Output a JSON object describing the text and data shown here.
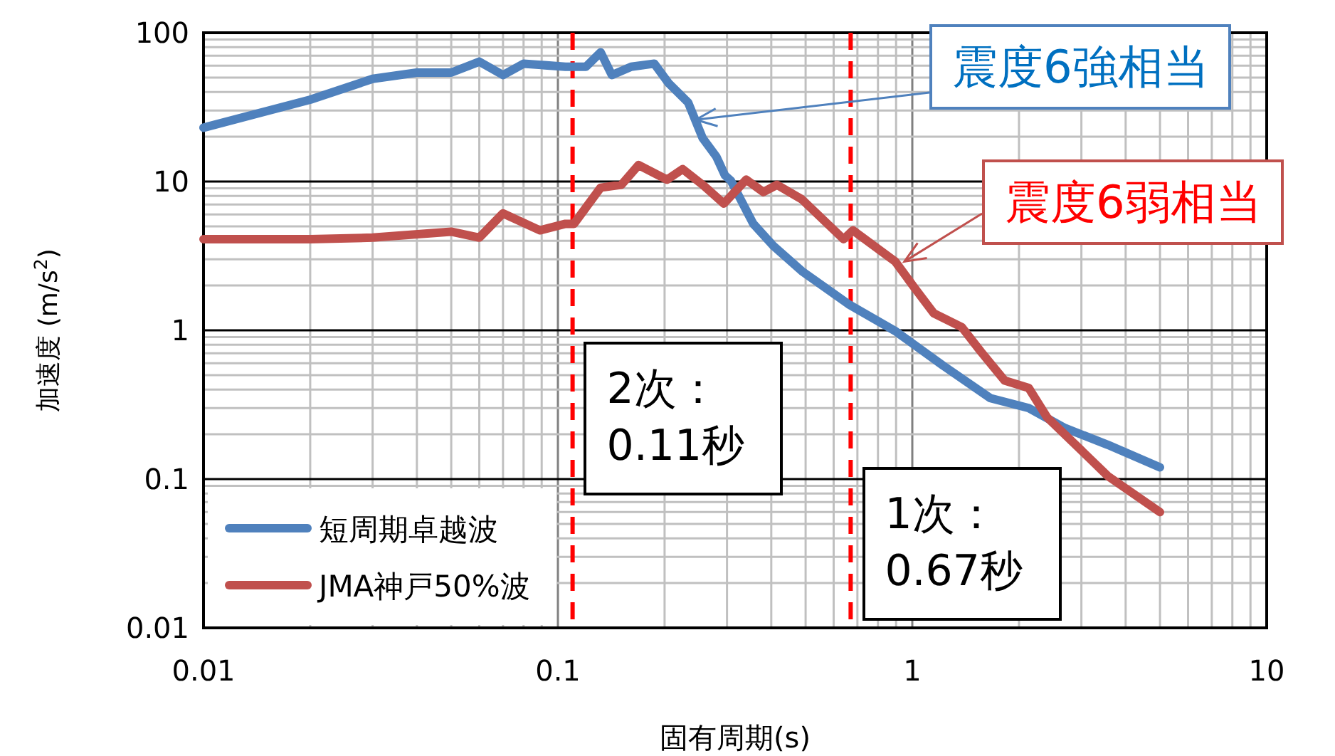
{
  "chart_data": {
    "type": "line",
    "xlabel": "固有周期(s)",
    "ylabel": "加速度 (m/s$^{2}$)",
    "log": "xy",
    "grid": true,
    "legend": "bottom left",
    "marker": "none",
    "line_style": "solid",
    "xlim": [
      0.01,
      10
    ],
    "xticks": [
      0.01,
      0.1,
      1,
      10
    ],
    "ylim": [
      0.01,
      100
    ],
    "yticks": [
      0.01,
      0.1,
      1,
      10,
      100
    ],
    "series": [
      {
        "name": "短周期卓越波",
        "color": "#4f81bd",
        "x": [
          0.01,
          0.02,
          0.03,
          0.04,
          0.05,
          0.06,
          0.07,
          0.08,
          0.105,
          0.12,
          0.132,
          0.142,
          0.161,
          0.187,
          0.205,
          0.233,
          0.256,
          0.28,
          0.296,
          0.308,
          0.356,
          0.405,
          0.488,
          0.66,
          0.9,
          1.22,
          1.66,
          2.13,
          2.7,
          3.56,
          5
        ],
        "values": [
          23,
          35.5,
          49,
          54,
          54,
          64,
          52,
          62,
          59,
          59,
          74,
          52,
          59,
          62,
          46,
          34,
          19.6,
          14.7,
          11,
          10.1,
          5.2,
          3.7,
          2.5,
          1.5,
          0.98,
          0.58,
          0.35,
          0.3,
          0.22,
          0.17,
          0.12
        ]
      },
      {
        "name": "JMA神戸50%波",
        "color": "#c0504d",
        "x": [
          0.01,
          0.02,
          0.03,
          0.05,
          0.06,
          0.07,
          0.089,
          0.105,
          0.111,
          0.132,
          0.151,
          0.169,
          0.203,
          0.225,
          0.256,
          0.294,
          0.34,
          0.38,
          0.415,
          0.488,
          0.64,
          0.68,
          0.895,
          1.02,
          1.15,
          1.38,
          1.56,
          1.82,
          2.13,
          2.4,
          3.05,
          3.56,
          5
        ],
        "values": [
          4.1,
          4.1,
          4.2,
          4.6,
          4.2,
          6.1,
          4.7,
          5.2,
          5.2,
          9.1,
          9.5,
          12.9,
          10.3,
          12.1,
          9.5,
          7.1,
          10.3,
          8.5,
          9.5,
          7.6,
          4.1,
          4.7,
          2.9,
          1.9,
          1.3,
          1.05,
          0.72,
          0.46,
          0.41,
          0.26,
          0.15,
          0.105,
          0.06
        ]
      }
    ],
    "ref_lines": [
      {
        "axis": "x",
        "value": 0.11,
        "label": "2次：0.11秒",
        "color": "#ff0000",
        "line_style": "dashed"
      },
      {
        "axis": "x",
        "value": 0.67,
        "label": "1次：0.67秒",
        "color": "#ff0000",
        "line_style": "dashed"
      }
    ],
    "annotations": [
      {
        "text": "震度6強相当",
        "x": 0.245,
        "y": 26
      },
      {
        "text": "震度6弱相当",
        "x": 0.95,
        "y": 2.9
      }
    ]
  }
}
